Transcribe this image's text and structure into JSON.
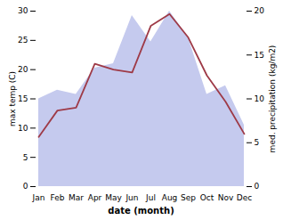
{
  "chart_data": {
    "type": "line",
    "categories": [
      "Jan",
      "Feb",
      "Mar",
      "Apr",
      "May",
      "Jun",
      "Jul",
      "Aug",
      "Sep",
      "Oct",
      "Nov",
      "Dec"
    ],
    "series": [
      {
        "name": "med. precipitation (kg/m2)",
        "type": "area",
        "axis": "y2",
        "color": "#c5caee",
        "values": [
          10.0,
          11.0,
          10.5,
          13.5,
          14.0,
          19.5,
          16.5,
          20.0,
          17.0,
          10.5,
          11.5,
          7.0
        ]
      },
      {
        "name": "max temp (C)",
        "type": "line",
        "color": "#9e3a47",
        "values": [
          8.5,
          13.0,
          13.5,
          21.0,
          20.0,
          19.5,
          27.5,
          29.5,
          25.5,
          19.0,
          14.5,
          9.0
        ]
      }
    ],
    "x_label": "date (month)",
    "y_label": "max temp (C)",
    "y2_label": "med. precipitation (kg/m2)",
    "ylim": [
      0,
      30
    ],
    "yticks": [
      0,
      5,
      10,
      15,
      20,
      25,
      30
    ],
    "y2lim": [
      0,
      20
    ],
    "y2ticks": [
      0,
      5,
      10,
      15,
      20
    ],
    "grid": false
  }
}
